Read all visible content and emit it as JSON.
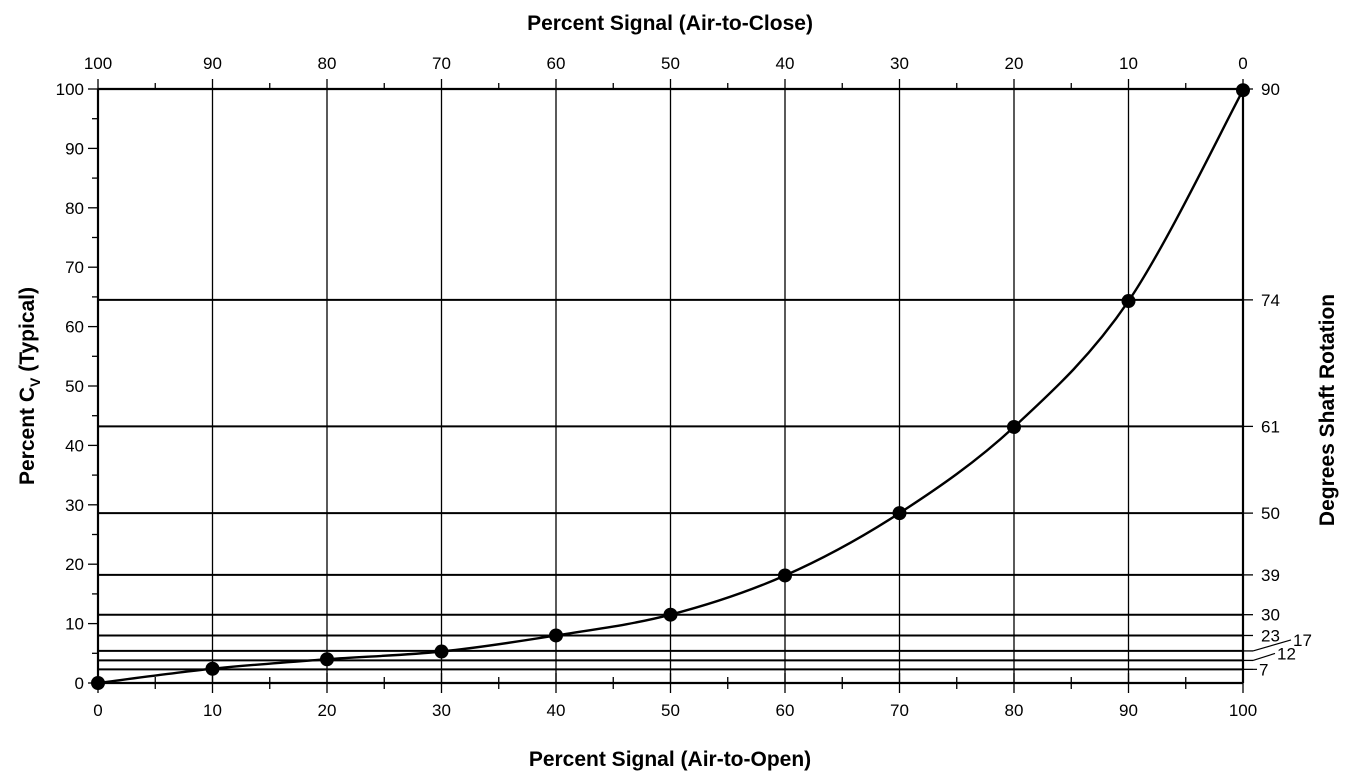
{
  "chart_data": {
    "type": "line",
    "top_axis_title": "Percent Signal (Air-to-Close)",
    "bottom_axis_title": "Percent Signal (Air-to-Open)",
    "left_axis_title": {
      "main": "Percent C",
      "subscript": "V",
      "suffix": " (Typical)"
    },
    "right_axis_title": "Degrees Shaft Rotation",
    "xlim": [
      0,
      100
    ],
    "ylim": [
      0,
      100
    ],
    "x_ticks": [
      0,
      10,
      20,
      30,
      40,
      50,
      60,
      70,
      80,
      90,
      100
    ],
    "top_ticks": [
      100,
      90,
      80,
      70,
      60,
      50,
      40,
      30,
      20,
      10,
      0
    ],
    "y_ticks": [
      0,
      10,
      20,
      30,
      40,
      50,
      60,
      70,
      80,
      90,
      100
    ],
    "rotation_lines": [
      {
        "label": "7",
        "cv": 2.3
      },
      {
        "label": "12",
        "cv": 3.8
      },
      {
        "label": "17",
        "cv": 5.4
      },
      {
        "label": "23",
        "cv": 8.0
      },
      {
        "label": "30",
        "cv": 11.5
      },
      {
        "label": "39",
        "cv": 18.2
      },
      {
        "label": "50",
        "cv": 28.6
      },
      {
        "label": "61",
        "cv": 43.2
      },
      {
        "label": "74",
        "cv": 64.5
      },
      {
        "label": "90",
        "cv": 100
      }
    ],
    "series": [
      {
        "x": [
          0,
          10,
          20,
          30,
          40,
          50,
          60,
          70,
          80,
          90,
          100
        ],
        "y": [
          0,
          2.4,
          4.0,
          5.3,
          8.0,
          11.5,
          18.1,
          28.6,
          43.1,
          64.3,
          99.8
        ]
      }
    ],
    "grid": true
  }
}
